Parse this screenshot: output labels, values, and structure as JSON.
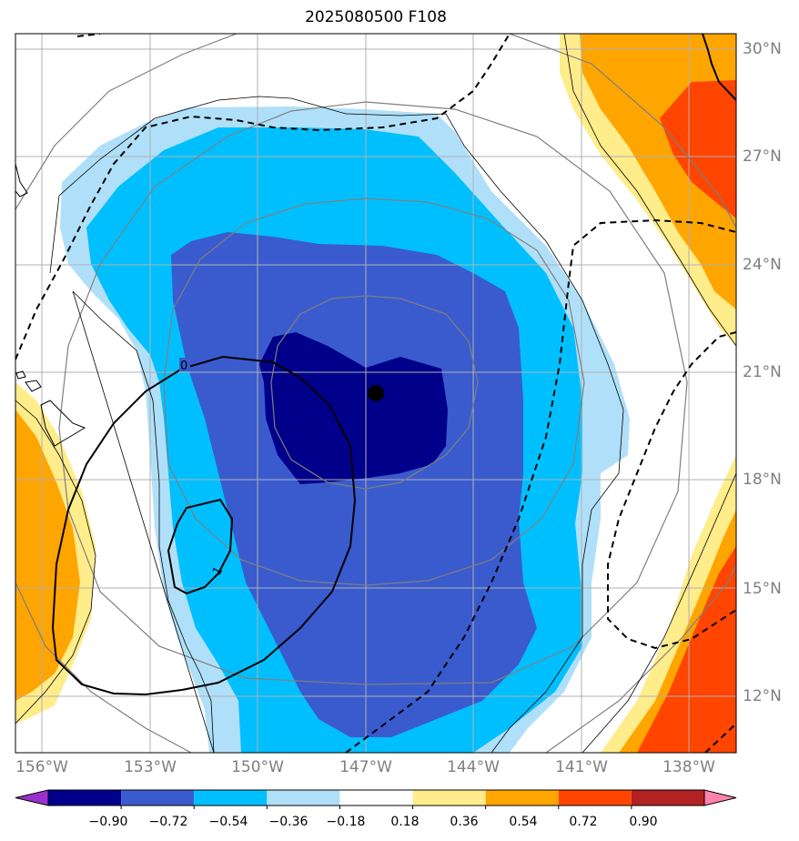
{
  "title": "2025080500 F108",
  "lat_labels": [
    "30°N",
    "27°N",
    "24°N",
    "21°N",
    "18°N",
    "15°N",
    "12°N"
  ],
  "lon_labels": [
    "156°W",
    "153°W",
    "150°W",
    "147°W",
    "144°W",
    "141°W",
    "138°W"
  ],
  "contour_labels": [
    "0",
    "-1"
  ],
  "colorbar": {
    "ticks": [
      "−0.90",
      "−0.72",
      "−0.54",
      "−0.36",
      "−0.18",
      "0.18",
      "0.36",
      "0.54",
      "0.72",
      "0.90"
    ],
    "colors": [
      "#9932cc",
      "#00008b",
      "#3a5bcd",
      "#00bfff",
      "#b0e0f9",
      "#ffffff",
      "#ffec8b",
      "#ffa500",
      "#ff4500",
      "#b22222",
      "#ff82ab"
    ]
  },
  "shading_colors": {
    "level_m072": "#00008b",
    "level_m054": "#3a5bcd",
    "level_m036": "#00bfff",
    "level_m018": "#b0e0f9",
    "level_p018": "#ffec8b",
    "level_p036": "#ffa500",
    "level_p054": "#ff4500"
  },
  "storm_center": {
    "lat": 20.4,
    "lon": -146.8
  }
}
